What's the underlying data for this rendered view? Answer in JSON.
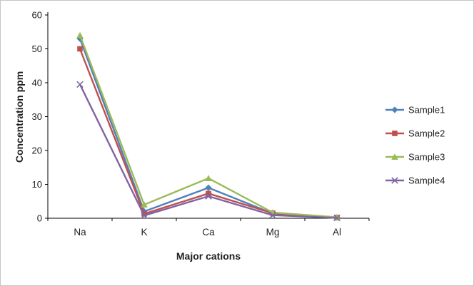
{
  "chart_data": {
    "type": "line",
    "title": "",
    "categories": [
      "Na",
      "K",
      "Ca",
      "Mg",
      "Al"
    ],
    "series": [
      {
        "name": "Sample1",
        "color": "#4F81BD",
        "marker": "diamond",
        "values": [
          53,
          2,
          9,
          1.4,
          0.2
        ]
      },
      {
        "name": "Sample2",
        "color": "#C0504D",
        "marker": "square",
        "values": [
          50,
          1.3,
          7.3,
          1.5,
          0.2
        ]
      },
      {
        "name": "Sample3",
        "color": "#9BBB59",
        "marker": "triangle",
        "values": [
          54,
          4,
          11.8,
          1.7,
          0.3
        ]
      },
      {
        "name": "Sample4",
        "color": "#8064A2",
        "marker": "x",
        "values": [
          39.5,
          0.8,
          6.5,
          0.9,
          0.1
        ]
      }
    ],
    "xlabel": "Major cations",
    "ylabel": "Concentration ppm",
    "ylim": [
      0,
      60
    ],
    "ytick_step": 10,
    "yticks": [
      0,
      10,
      20,
      30,
      40,
      50,
      60
    ],
    "grid": false,
    "legend_position": "right",
    "axis_color": "#000000",
    "text_color": "#1f1f1f"
  }
}
